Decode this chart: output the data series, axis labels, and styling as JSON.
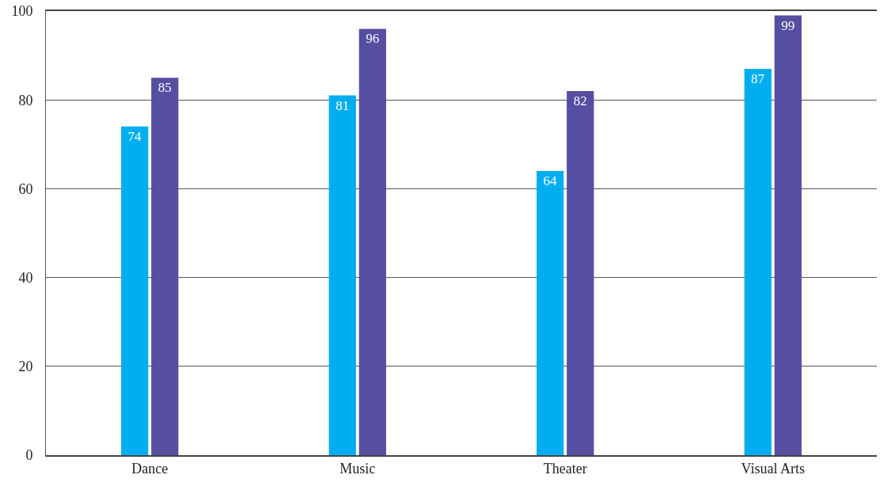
{
  "chart_data": {
    "type": "bar",
    "categories": [
      "Dance",
      "Music",
      "Theater",
      "Visual Arts"
    ],
    "series": [
      {
        "color": "#00aeef",
        "values": [
          74,
          81,
          64,
          87
        ]
      },
      {
        "color": "#554ea1",
        "values": [
          85,
          96,
          82,
          99
        ]
      }
    ],
    "ylim": [
      0,
      100
    ],
    "yticks": [
      0,
      20,
      40,
      60,
      80,
      100
    ],
    "grid": "y",
    "data_labels": true,
    "legend": false
  }
}
